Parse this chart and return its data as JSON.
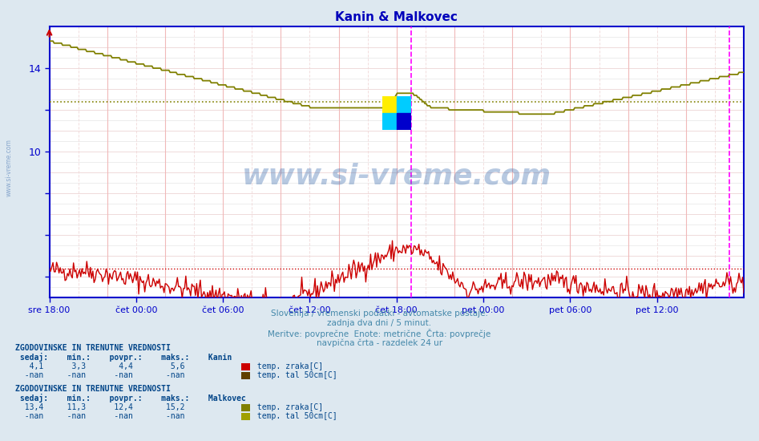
{
  "title": "Kanin & Malkovec",
  "title_color": "#0000bb",
  "bg_color": "#dde8f0",
  "plot_bg_color": "#ffffff",
  "ylim": [
    3.0,
    16.0
  ],
  "ytick_vals": [
    4,
    6,
    8,
    10,
    12,
    14
  ],
  "ytick_lbls": [
    "",
    "",
    "",
    "10",
    "",
    "14"
  ],
  "x_labels": [
    "sre 18:00",
    "čet 00:00",
    "čet 06:00",
    "čet 12:00",
    "čet 18:00",
    "pet 00:00",
    "pet 06:00",
    "pet 12:00"
  ],
  "xtick_pos": [
    0.0,
    0.125,
    0.25,
    0.375,
    0.5,
    0.625,
    0.75,
    0.875
  ],
  "vline1_t": 0.521,
  "vline2_t": 0.979,
  "kanin_avg": 4.4,
  "malkovec_avg": 12.4,
  "kanin_zraka_color": "#cc0000",
  "kanin_tal_color": "#604000",
  "malkovec_zraka_color": "#808000",
  "malkovec_tal_color": "#a0a000",
  "axis_color": "#0000cc",
  "tick_color": "#0000cc",
  "watermark_color": "#3366aa",
  "watermark_alpha": 0.35,
  "subtitle_color": "#4488aa",
  "legend_color": "#004488",
  "subtitle_lines": [
    "Slovenija / vremenski podatki - avtomatske postaje.",
    "zadnja dva dni / 5 minut.",
    "Meritve: povprečne  Enote: metrične  Črta: povprečje",
    "navpična črta - razdelek 24 ur"
  ],
  "grid_minor_color": "#f0d8d8",
  "grid_major_color": "#f0b8b8",
  "grid_dotted_color": "#e0e0e0"
}
